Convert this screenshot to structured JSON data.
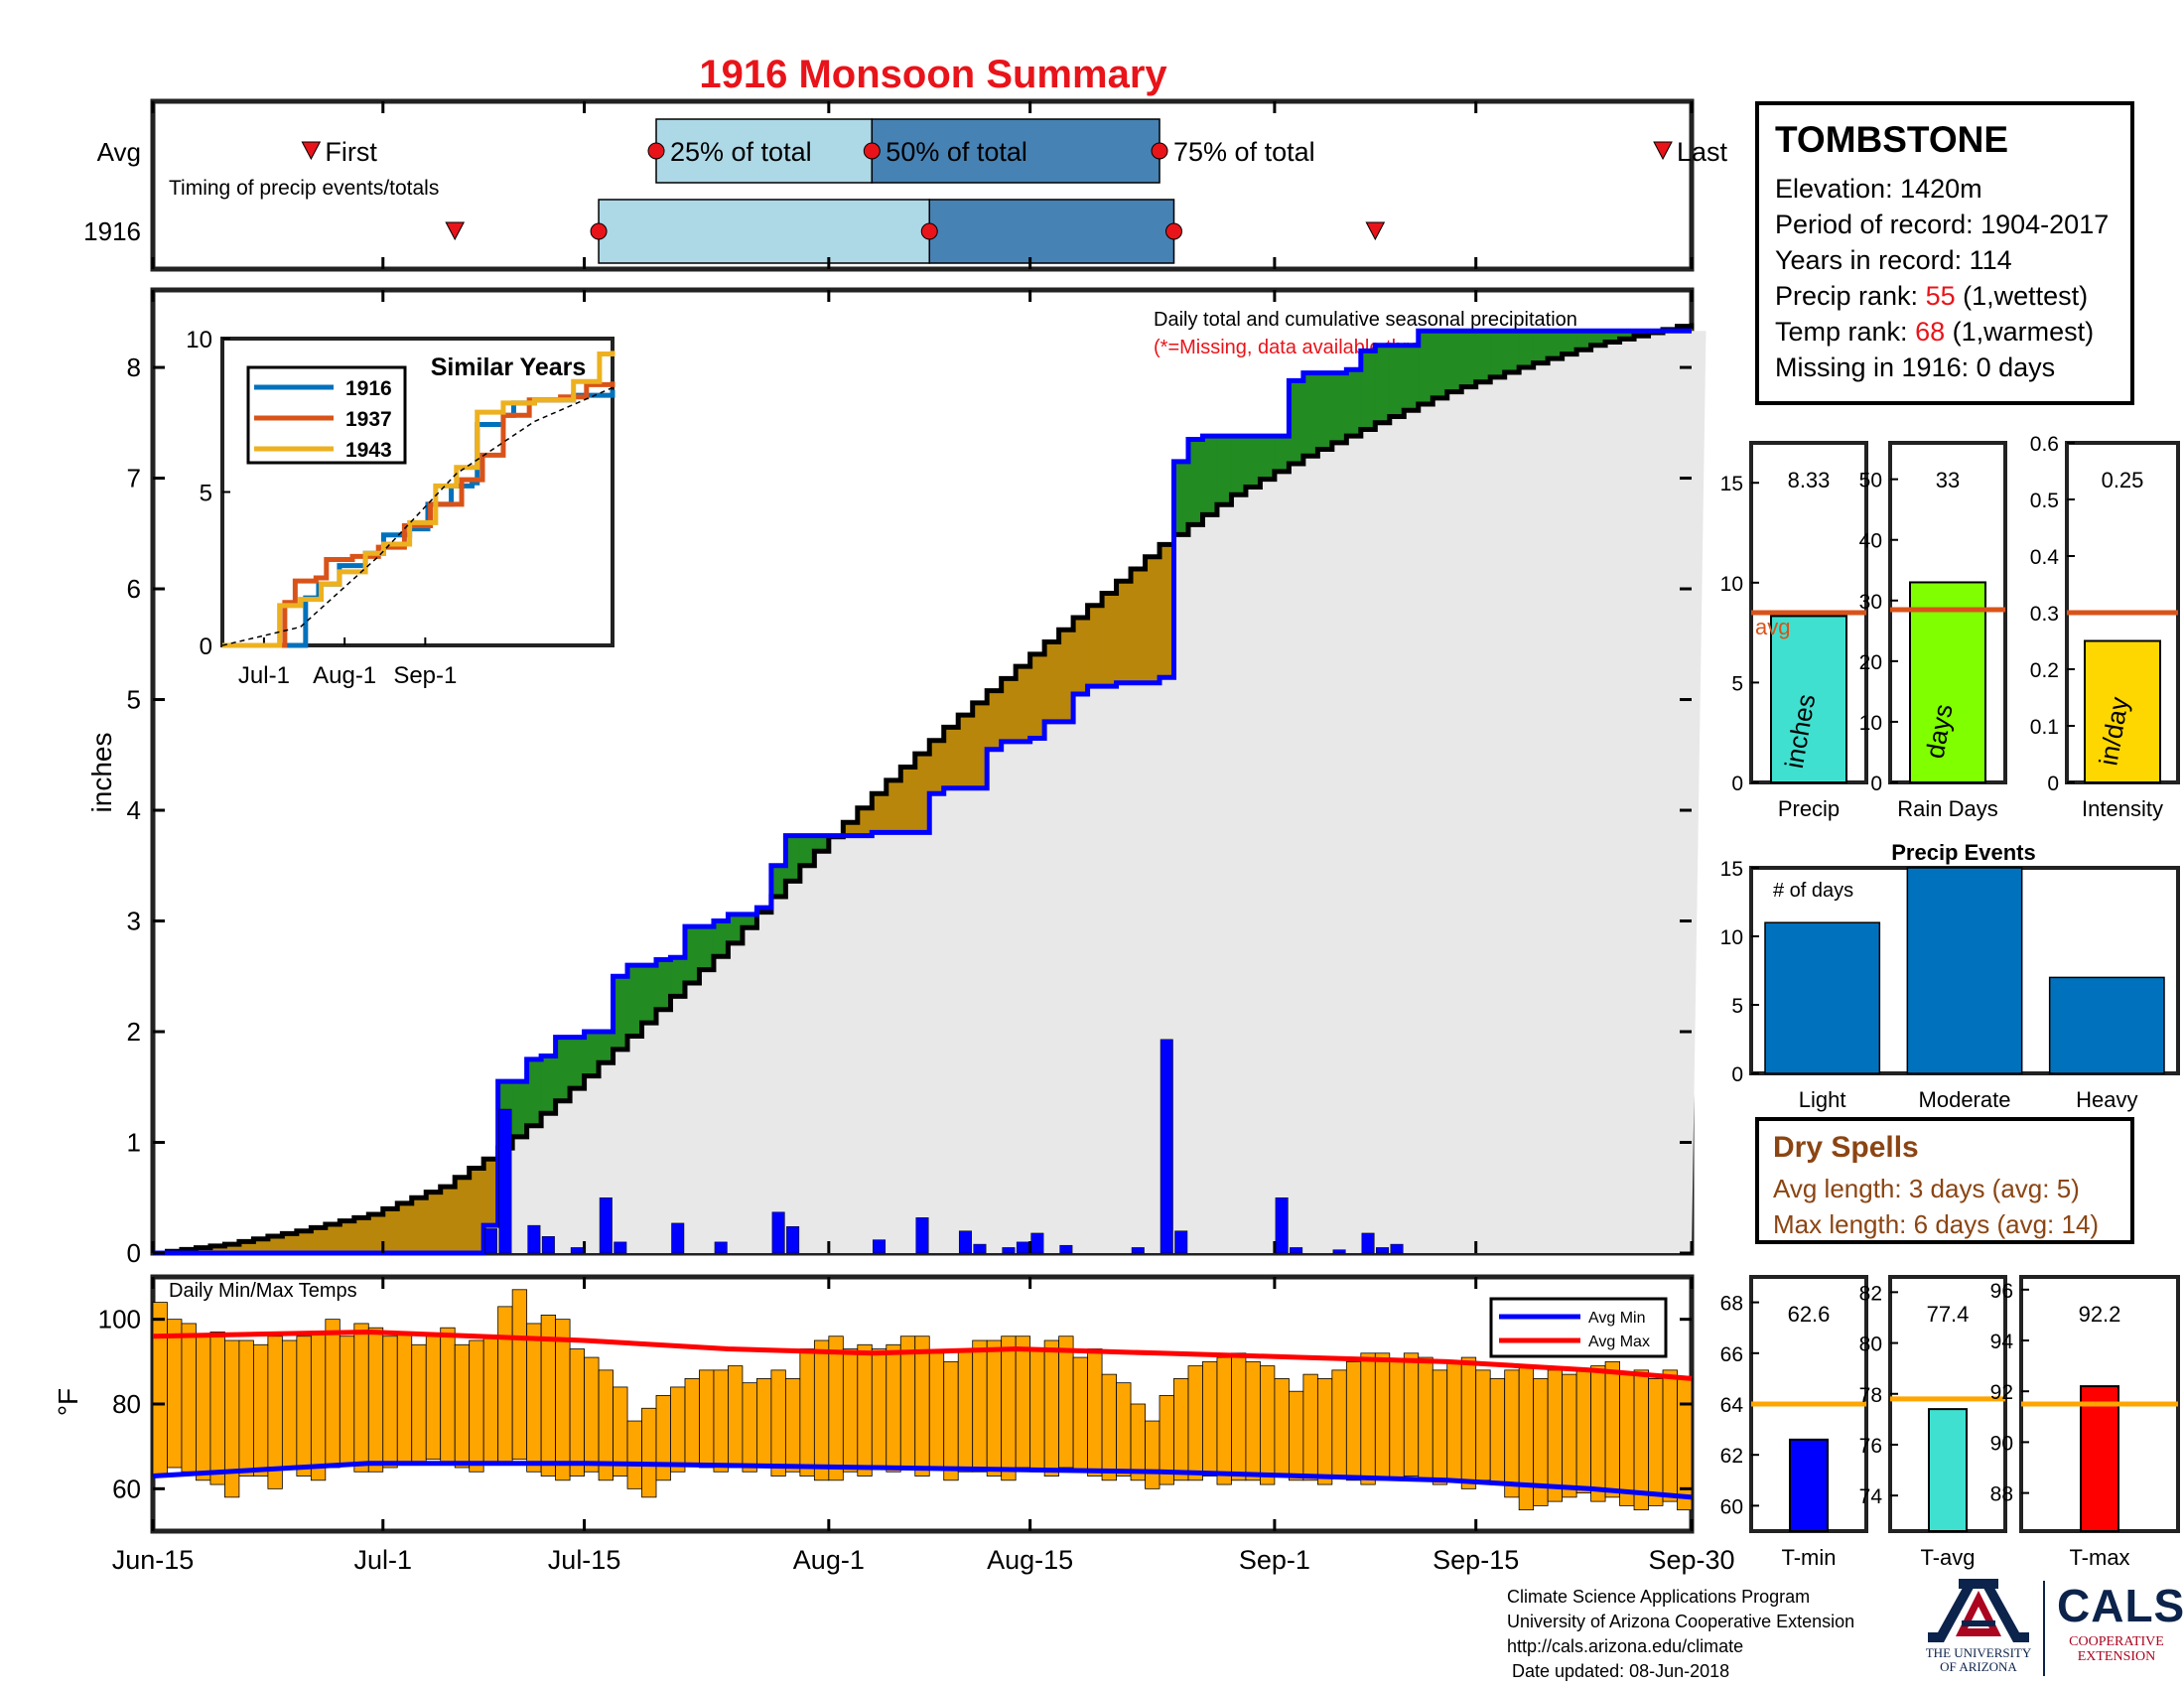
{
  "title": "1916 Monsoon Summary",
  "station": {
    "name": "TOMBSTONE",
    "elevation": "Elevation: 1420m",
    "period": "Period of record: 1904-2017",
    "years": "Years in record: 114",
    "precip_rank_prefix": "Precip rank: ",
    "precip_rank": "55",
    "precip_rank_suffix": " (1,wettest)",
    "temp_rank_prefix": "Temp rank: ",
    "temp_rank": "68",
    "temp_rank_suffix": " (1,warmest)",
    "missing": "Missing in 1916: 0 days"
  },
  "dry_spells": {
    "title": "Dry Spells",
    "avg": "Avg length: 3 days (avg: 5)",
    "max": "Max length: 6 days (avg: 14)"
  },
  "credits": {
    "line1": "Climate Science Applications Program",
    "line2": "University of Arizona Cooperative Extension",
    "line3": "http://cals.arizona.edu/climate",
    "line4": "Date updated: 08-Jun-2018"
  },
  "logos": {
    "ua_line1": "THE UNIVERSITY",
    "ua_line2": "OF ARIZONA",
    "cals": "CALS",
    "cals_line1": "COOPERATIVE",
    "cals_line2": "EXTENSION"
  },
  "colors": {
    "cumulative_avg": "#b8860b",
    "cumulative_above": "#228b22",
    "background_area": "#e8e8e8",
    "daily_bars": "#0000ff",
    "temp_bars": "#ffa500",
    "avg_max": "#ff0000",
    "avg_min": "#0000ff",
    "timing_light": "#add8e6",
    "timing_dark": "#4682b4"
  },
  "chart_data": [
    {
      "type": "timing",
      "rows": [
        "Avg",
        "1916"
      ],
      "annotation": "Timing of precip events/totals",
      "labels": {
        "first": "First",
        "q25": "25% of total",
        "q50": "50% of total",
        "q75": "75% of total",
        "last": "Last"
      },
      "avg": {
        "first": "2016-06-26",
        "q25": "2016-07-20",
        "q50": "2016-08-04",
        "q75": "2016-08-24",
        "last": "2016-09-28"
      },
      "year": {
        "first": "2016-07-06",
        "q25": "2016-07-16",
        "q50": "2016-08-08",
        "q75": "2016-08-25",
        "last": "2016-09-08"
      }
    },
    {
      "type": "area",
      "annotation_title": "Daily total and cumulative seasonal precipitation",
      "annotation_missing": "(*=Missing, data available through 30-Sep-2017)",
      "ylabel": "inches",
      "ylim": [
        0,
        8.7
      ],
      "yticks": [
        0,
        1,
        2,
        3,
        4,
        5,
        6,
        7,
        8
      ],
      "xlim": [
        "2016-06-15",
        "2016-09-30"
      ],
      "xticks": [
        "Jun-15",
        "Jul-1",
        "Jul-15",
        "Aug-1",
        "Aug-15",
        "Sep-1",
        "Sep-15",
        "Sep-30"
      ],
      "xtick_dates": [
        "2016-06-15",
        "2016-07-01",
        "2016-07-15",
        "2016-08-01",
        "2016-08-15",
        "2016-09-01",
        "2016-09-15",
        "2016-09-30"
      ],
      "year_cumulative": [
        [
          "2016-06-15",
          0
        ],
        [
          "2016-07-08",
          0.25
        ],
        [
          "2016-07-09",
          1.55
        ],
        [
          "2016-07-11",
          1.75
        ],
        [
          "2016-07-12",
          1.78
        ],
        [
          "2016-07-13",
          1.95
        ],
        [
          "2016-07-15",
          2.0
        ],
        [
          "2016-07-16",
          2.0
        ],
        [
          "2016-07-17",
          2.5
        ],
        [
          "2016-07-18",
          2.6
        ],
        [
          "2016-07-20",
          2.65
        ],
        [
          "2016-07-21",
          2.67
        ],
        [
          "2016-07-22",
          2.95
        ],
        [
          "2016-07-24",
          3.0
        ],
        [
          "2016-07-25",
          3.06
        ],
        [
          "2016-07-27",
          3.12
        ],
        [
          "2016-07-28",
          3.5
        ],
        [
          "2016-07-29",
          3.77
        ],
        [
          "2016-08-01",
          3.77
        ],
        [
          "2016-08-03",
          3.77
        ],
        [
          "2016-08-04",
          3.8
        ],
        [
          "2016-08-06",
          3.8
        ],
        [
          "2016-08-08",
          4.15
        ],
        [
          "2016-08-09",
          4.2
        ],
        [
          "2016-08-12",
          4.55
        ],
        [
          "2016-08-13",
          4.62
        ],
        [
          "2016-08-15",
          4.65
        ],
        [
          "2016-08-16",
          4.8
        ],
        [
          "2016-08-18",
          5.05
        ],
        [
          "2016-08-19",
          5.12
        ],
        [
          "2016-08-21",
          5.15
        ],
        [
          "2016-08-22",
          5.15
        ],
        [
          "2016-08-24",
          5.2
        ],
        [
          "2016-08-25",
          7.15
        ],
        [
          "2016-08-26",
          7.35
        ],
        [
          "2016-08-27",
          7.38
        ],
        [
          "2016-08-29",
          7.38
        ],
        [
          "2016-09-01",
          7.38
        ],
        [
          "2016-09-02",
          7.88
        ],
        [
          "2016-09-03",
          7.95
        ],
        [
          "2016-09-06",
          7.98
        ],
        [
          "2016-09-07",
          8.15
        ],
        [
          "2016-09-08",
          8.2
        ],
        [
          "2016-09-11",
          8.33
        ],
        [
          "2016-09-30",
          8.33
        ]
      ],
      "avg_cumulative": [
        [
          "2016-06-15",
          0
        ],
        [
          "2016-06-20",
          0.08
        ],
        [
          "2016-06-25",
          0.2
        ],
        [
          "2016-06-30",
          0.35
        ],
        [
          "2016-07-05",
          0.6
        ],
        [
          "2016-07-08",
          0.85
        ],
        [
          "2016-07-11",
          1.15
        ],
        [
          "2016-07-15",
          1.6
        ],
        [
          "2016-07-20",
          2.2
        ],
        [
          "2016-07-25",
          2.8
        ],
        [
          "2016-07-30",
          3.5
        ],
        [
          "2016-08-04",
          4.15
        ],
        [
          "2016-08-09",
          4.75
        ],
        [
          "2016-08-14",
          5.3
        ],
        [
          "2016-08-19",
          5.85
        ],
        [
          "2016-08-24",
          6.4
        ],
        [
          "2016-08-29",
          6.85
        ],
        [
          "2016-09-03",
          7.2
        ],
        [
          "2016-09-08",
          7.5
        ],
        [
          "2016-09-13",
          7.78
        ],
        [
          "2016-09-18",
          8.0
        ],
        [
          "2016-09-23",
          8.2
        ],
        [
          "2016-09-30",
          8.4
        ]
      ],
      "daily_precip": [
        [
          "2016-07-08",
          0.22
        ],
        [
          "2016-07-09",
          1.3
        ],
        [
          "2016-07-11",
          0.25
        ],
        [
          "2016-07-12",
          0.15
        ],
        [
          "2016-07-14",
          0.05
        ],
        [
          "2016-07-16",
          0.5
        ],
        [
          "2016-07-17",
          0.1
        ],
        [
          "2016-07-21",
          0.27
        ],
        [
          "2016-07-24",
          0.1
        ],
        [
          "2016-07-28",
          0.37
        ],
        [
          "2016-07-29",
          0.24
        ],
        [
          "2016-08-04",
          0.12
        ],
        [
          "2016-08-07",
          0.32
        ],
        [
          "2016-08-10",
          0.2
        ],
        [
          "2016-08-11",
          0.08
        ],
        [
          "2016-08-13",
          0.05
        ],
        [
          "2016-08-14",
          0.1
        ],
        [
          "2016-08-15",
          0.18
        ],
        [
          "2016-08-17",
          0.07
        ],
        [
          "2016-08-22",
          0.05
        ],
        [
          "2016-08-24",
          1.93
        ],
        [
          "2016-08-25",
          0.2
        ],
        [
          "2016-09-01",
          0.5
        ],
        [
          "2016-09-02",
          0.05
        ],
        [
          "2016-09-05",
          0.03
        ],
        [
          "2016-09-07",
          0.18
        ],
        [
          "2016-09-08",
          0.05
        ],
        [
          "2016-09-09",
          0.08
        ]
      ]
    },
    {
      "type": "line",
      "title": "Similar Years",
      "ylim": [
        0,
        10
      ],
      "yticks": [
        0,
        5,
        10
      ],
      "xticks": [
        "Jul-1",
        "Aug-1",
        "Sep-1"
      ],
      "series": [
        {
          "name": "1916",
          "color": "#0072bd",
          "values": [
            [
              0,
              0
            ],
            [
              30,
              0
            ],
            [
              32,
              1.55
            ],
            [
              37,
              2.0
            ],
            [
              45,
              2.6
            ],
            [
              55,
              3.0
            ],
            [
              62,
              3.6
            ],
            [
              72,
              3.8
            ],
            [
              79,
              4.6
            ],
            [
              88,
              5.2
            ],
            [
              96,
              5.3
            ],
            [
              98,
              7.2
            ],
            [
              108,
              7.5
            ],
            [
              112,
              7.9
            ],
            [
              120,
              8.0
            ],
            [
              135,
              8.15
            ],
            [
              150,
              8.33
            ]
          ]
        },
        {
          "name": "1937",
          "color": "#d95319",
          "values": [
            [
              0,
              0
            ],
            [
              20,
              0
            ],
            [
              24,
              1.4
            ],
            [
              28,
              2.1
            ],
            [
              36,
              2.2
            ],
            [
              40,
              2.8
            ],
            [
              50,
              2.9
            ],
            [
              60,
              3.2
            ],
            [
              70,
              3.9
            ],
            [
              80,
              4.6
            ],
            [
              92,
              5.4
            ],
            [
              100,
              6.2
            ],
            [
              108,
              7.5
            ],
            [
              118,
              8.0
            ],
            [
              130,
              8.1
            ],
            [
              140,
              8.5
            ],
            [
              150,
              8.6
            ]
          ]
        },
        {
          "name": "1943",
          "color": "#edb120",
          "values": [
            [
              0,
              0
            ],
            [
              18,
              0
            ],
            [
              22,
              1.3
            ],
            [
              30,
              1.5
            ],
            [
              38,
              2.0
            ],
            [
              45,
              2.4
            ],
            [
              55,
              3.0
            ],
            [
              62,
              3.3
            ],
            [
              72,
              4.0
            ],
            [
              82,
              5.2
            ],
            [
              90,
              5.8
            ],
            [
              98,
              7.6
            ],
            [
              108,
              7.9
            ],
            [
              120,
              8.0
            ],
            [
              135,
              8.6
            ],
            [
              145,
              9.5
            ],
            [
              150,
              9.6
            ]
          ]
        },
        {
          "name": "Average",
          "color": "#000000",
          "values": [
            [
              0,
              0
            ],
            [
              30,
              0.6
            ],
            [
              60,
              2.9
            ],
            [
              90,
              5.6
            ],
            [
              120,
              7.3
            ],
            [
              150,
              8.4
            ]
          ]
        }
      ]
    },
    {
      "type": "bar",
      "title": "Precip",
      "categories": [
        "inches"
      ],
      "values": [
        8.33
      ],
      "value_label": "8.33",
      "avg": 8.5,
      "avg_label": "avg",
      "ylim": [
        0,
        17
      ],
      "yticks": [
        0,
        5,
        10,
        15
      ],
      "color": "#40e0d0"
    },
    {
      "type": "bar",
      "title": "Rain Days",
      "categories": [
        "days"
      ],
      "values": [
        33
      ],
      "value_label": "33",
      "avg": 28.5,
      "ylim": [
        0,
        56
      ],
      "yticks": [
        0,
        10,
        20,
        30,
        40,
        50
      ],
      "color": "#7fff00"
    },
    {
      "type": "bar",
      "title": "Intensity",
      "categories": [
        "in/day"
      ],
      "values": [
        0.25
      ],
      "value_label": "0.25",
      "avg": 0.3,
      "ylim": [
        0,
        0.6
      ],
      "yticks": [
        0,
        0.1,
        0.2,
        0.3,
        0.4,
        0.5,
        0.6
      ],
      "color": "#ffd700"
    },
    {
      "type": "bar",
      "title": "Precip Events",
      "ylabel": "# of days",
      "categories": [
        "Light",
        "Moderate",
        "Heavy"
      ],
      "values": [
        11,
        15,
        7
      ],
      "ylim": [
        0,
        15
      ],
      "yticks": [
        0,
        5,
        10,
        15
      ],
      "color": "#0072bd"
    },
    {
      "type": "bar",
      "title": "Daily Min/Max Temps",
      "ylabel": "°F",
      "ylim": [
        50,
        110
      ],
      "yticks": [
        60,
        80,
        100
      ],
      "legend": [
        "Avg Min",
        "Avg Max"
      ],
      "legend_placement": "top-right",
      "avg_max": [
        [
          0,
          96
        ],
        [
          15,
          97
        ],
        [
          30,
          95
        ],
        [
          40,
          93
        ],
        [
          50,
          92
        ],
        [
          60,
          93
        ],
        [
          70,
          92
        ],
        [
          80,
          91
        ],
        [
          90,
          90
        ],
        [
          100,
          88
        ],
        [
          107,
          86
        ]
      ],
      "avg_min": [
        [
          0,
          63
        ],
        [
          15,
          66
        ],
        [
          30,
          66
        ],
        [
          50,
          65
        ],
        [
          70,
          64
        ],
        [
          80,
          63
        ],
        [
          90,
          62
        ],
        [
          100,
          60
        ],
        [
          107,
          58
        ]
      ],
      "tmax": [
        104,
        100,
        99,
        96,
        97,
        95,
        95,
        94,
        96,
        95,
        96,
        97,
        100,
        96,
        99,
        98,
        96,
        97,
        94,
        96,
        98,
        94,
        95,
        96,
        103,
        107,
        99,
        101,
        100,
        93,
        91,
        88,
        84,
        76,
        79,
        82,
        84,
        86,
        88,
        88,
        89,
        85,
        86,
        88,
        86,
        93,
        95,
        96,
        93,
        94,
        93,
        94,
        96,
        96,
        92,
        90,
        93,
        95,
        95,
        96,
        96,
        93,
        95,
        96,
        91,
        93,
        87,
        85,
        80,
        76,
        82,
        86,
        89,
        90,
        91,
        92,
        90,
        89,
        86,
        83,
        87,
        86,
        88,
        90,
        92,
        92,
        90,
        92,
        91,
        88,
        90,
        91,
        88,
        86,
        88,
        89,
        86,
        88,
        87,
        88,
        89,
        90,
        87,
        88,
        86,
        88,
        86
      ],
      "tmin": [
        63,
        65,
        64,
        62,
        61,
        58,
        63,
        63,
        60,
        65,
        63,
        62,
        65,
        66,
        64,
        64,
        65,
        66,
        66,
        67,
        66,
        65,
        64,
        66,
        66,
        67,
        64,
        63,
        62,
        63,
        64,
        62,
        63,
        60,
        58,
        62,
        64,
        66,
        65,
        64,
        65,
        64,
        65,
        63,
        64,
        63,
        62,
        62,
        64,
        63,
        65,
        64,
        65,
        63,
        65,
        62,
        64,
        64,
        63,
        62,
        65,
        64,
        63,
        65,
        64,
        63,
        62,
        63,
        62,
        60,
        61,
        62,
        62,
        63,
        61,
        62,
        62,
        61,
        63,
        62,
        62,
        61,
        63,
        62,
        61,
        62,
        62,
        63,
        62,
        61,
        62,
        60,
        62,
        61,
        58,
        55,
        56,
        57,
        58,
        59,
        57,
        58,
        56,
        55,
        56,
        57,
        55
      ]
    },
    {
      "type": "bar",
      "title": "T-min",
      "values": [
        62.6
      ],
      "value_label": "62.6",
      "avg": 64,
      "ylim": [
        59,
        69
      ],
      "yticks": [
        60,
        62,
        64,
        66,
        68
      ],
      "color": "#0000ff"
    },
    {
      "type": "bar",
      "title": "T-avg",
      "values": [
        77.4
      ],
      "value_label": "77.4",
      "avg": 77.8,
      "ylim": [
        72.6,
        82.6
      ],
      "yticks": [
        74,
        76,
        78,
        80,
        82
      ],
      "color": "#40e0d0"
    },
    {
      "type": "bar",
      "title": "T-max",
      "values": [
        92.2
      ],
      "value_label": "92.2",
      "avg": 91.5,
      "ylim": [
        86.5,
        96.5
      ],
      "yticks": [
        88,
        90,
        92,
        94,
        96
      ],
      "color": "#ff0000"
    }
  ]
}
